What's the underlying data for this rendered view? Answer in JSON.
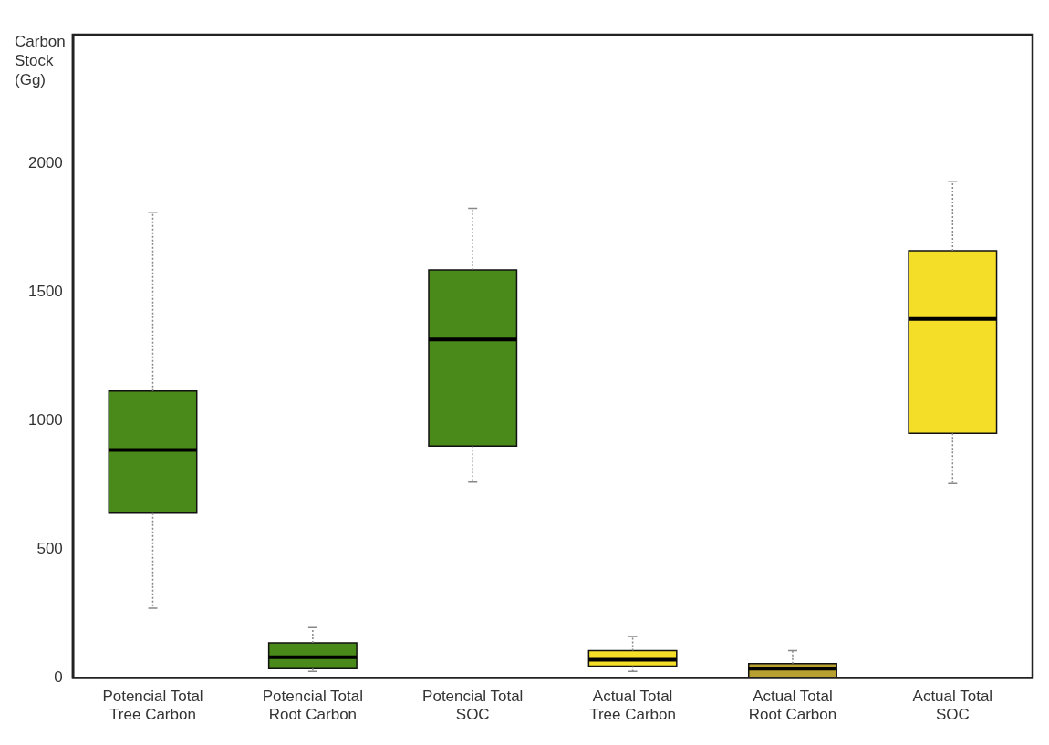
{
  "chart_data": {
    "type": "box",
    "ylabel": "Carbon Stock (Gg)",
    "categories": [
      "Potencial Total Tree Carbon",
      "Potencial Total Root Carbon",
      "Potencial Total SOC",
      "Actual Total Tree Carbon",
      "Actual Total Root Carbon",
      "Actual Total SOC"
    ],
    "boxes": [
      {
        "low": 270,
        "q1": 640,
        "median": 885,
        "q3": 1115,
        "high": 1810
      },
      {
        "low": 25,
        "q1": 35,
        "median": 80,
        "q3": 135,
        "high": 195
      },
      {
        "low": 760,
        "q1": 900,
        "median": 1315,
        "q3": 1585,
        "high": 1825
      },
      {
        "low": 25,
        "q1": 45,
        "median": 70,
        "q3": 105,
        "high": 160
      },
      {
        "low": 0,
        "q1": 0,
        "median": 35,
        "q3": 55,
        "high": 105
      },
      {
        "low": 755,
        "q1": 950,
        "median": 1395,
        "q3": 1660,
        "high": 1930
      }
    ],
    "colors": [
      "#4a8a1a",
      "#4a8a1a",
      "#4a8a1a",
      "#f5de28",
      "#b8a030",
      "#f5de28"
    ],
    "ylim": [
      0,
      2500
    ],
    "yticks": [
      0,
      500,
      1000,
      1500,
      2000
    ]
  }
}
